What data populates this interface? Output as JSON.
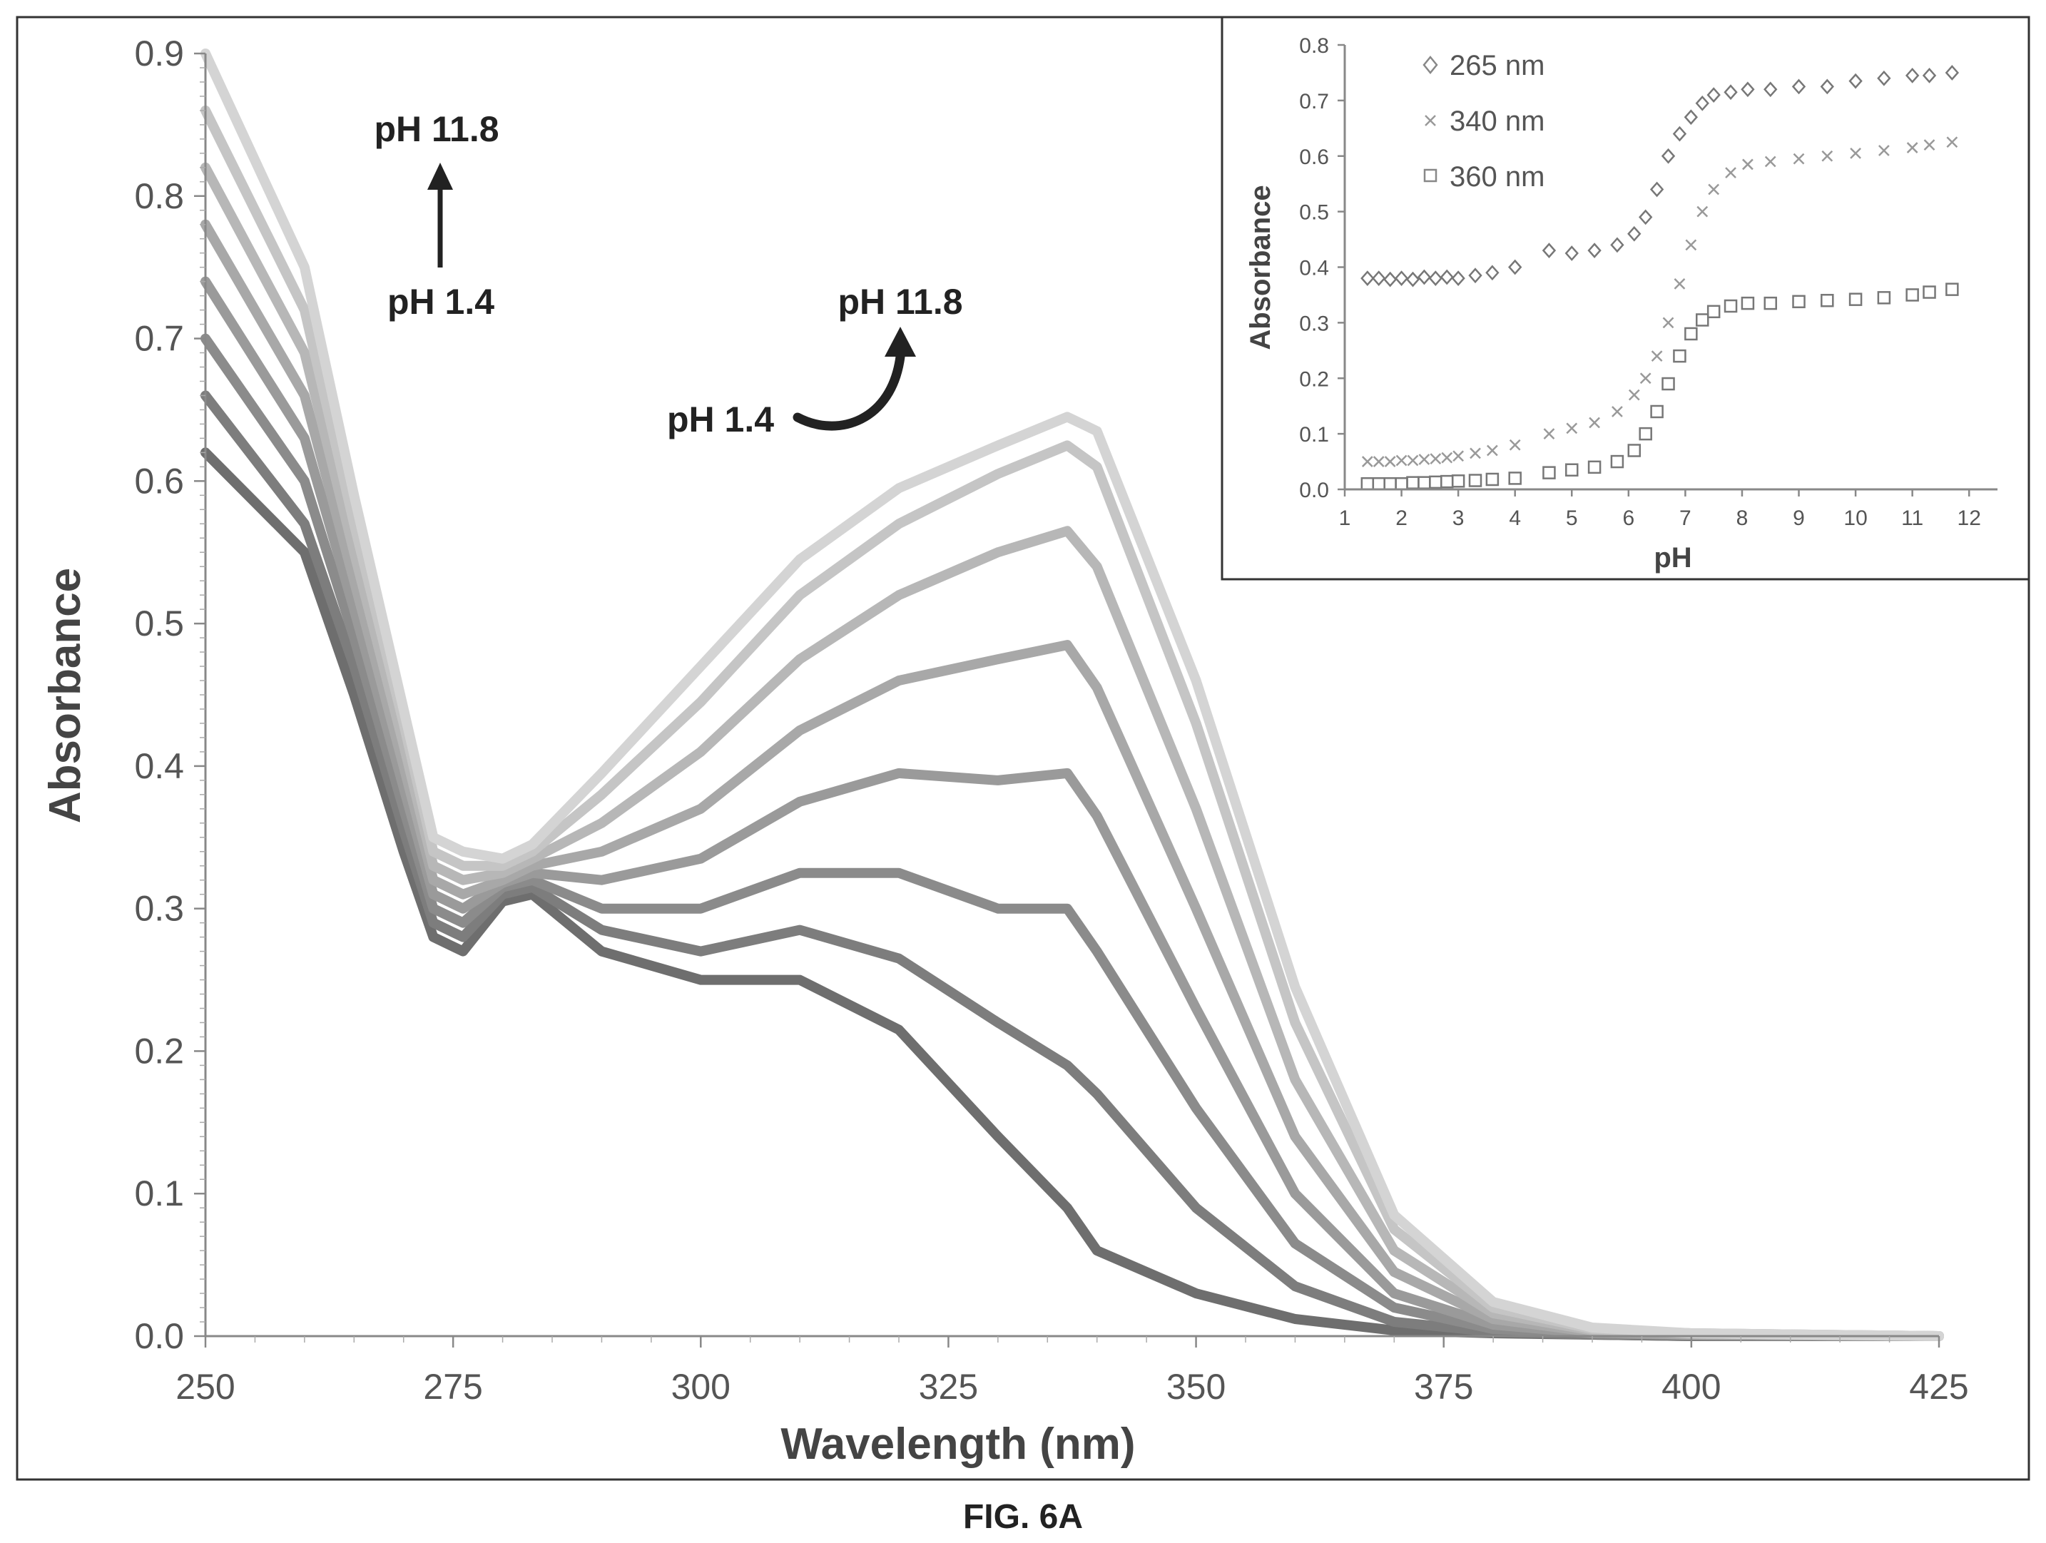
{
  "caption": "FIG. 6A",
  "colors": {
    "curve_dark": "#6e6e6e",
    "curve_light": "#d4d4d4",
    "marker": "#777777",
    "frame": "#333333"
  },
  "chart_data": [
    {
      "type": "line",
      "title": "",
      "xlabel": "Wavelength (nm)",
      "ylabel": "Absorbance",
      "xlim": [
        250,
        425
      ],
      "ylim": [
        0,
        0.9
      ],
      "x_ticks": [
        "250",
        "275",
        "300",
        "325",
        "350",
        "375",
        "400",
        "425"
      ],
      "y_ticks": [
        "0.0",
        "0.1",
        "0.2",
        "0.3",
        "0.4",
        "0.5",
        "0.6",
        "0.7",
        "0.8",
        "0.9"
      ],
      "grid": false,
      "annotations": [
        {
          "text": "pH 11.8",
          "near": "short-wavelength band, top"
        },
        {
          "text": "pH 1.4",
          "near": "short-wavelength band, bottom"
        },
        {
          "text": "pH 11.8",
          "near": "long-wavelength band, arrow head"
        },
        {
          "text": "pH 1.4",
          "near": "long-wavelength band, arrow tail"
        }
      ],
      "series": [
        {
          "x": [
            250,
            260,
            265,
            270,
            273,
            276,
            280,
            283,
            290,
            300,
            310,
            320,
            330,
            337,
            340,
            350,
            360,
            370,
            380,
            390,
            400,
            425
          ],
          "y": [
            0.62,
            0.55,
            0.45,
            0.34,
            0.28,
            0.27,
            0.305,
            0.31,
            0.27,
            0.25,
            0.25,
            0.215,
            0.14,
            0.09,
            0.06,
            0.03,
            0.012,
            0.004,
            0.002,
            0.001,
            0.0,
            0.0
          ]
        },
        {
          "x": [
            250,
            260,
            265,
            270,
            273,
            276,
            280,
            283,
            290,
            300,
            310,
            320,
            330,
            337,
            340,
            350,
            360,
            370,
            380,
            390,
            400,
            425
          ],
          "y": [
            0.66,
            0.57,
            0.47,
            0.355,
            0.29,
            0.28,
            0.31,
            0.315,
            0.285,
            0.27,
            0.285,
            0.265,
            0.22,
            0.19,
            0.17,
            0.09,
            0.035,
            0.01,
            0.003,
            0.001,
            0.0,
            0.0
          ]
        },
        {
          "x": [
            250,
            260,
            265,
            270,
            273,
            276,
            280,
            283,
            290,
            300,
            310,
            320,
            330,
            337,
            340,
            350,
            360,
            370,
            380,
            390,
            400,
            425
          ],
          "y": [
            0.7,
            0.6,
            0.49,
            0.37,
            0.3,
            0.29,
            0.315,
            0.32,
            0.3,
            0.3,
            0.325,
            0.325,
            0.3,
            0.3,
            0.27,
            0.16,
            0.065,
            0.02,
            0.005,
            0.002,
            0.001,
            0.0
          ]
        },
        {
          "x": [
            250,
            260,
            265,
            270,
            273,
            276,
            280,
            283,
            290,
            300,
            310,
            320,
            330,
            337,
            340,
            350,
            360,
            370,
            380,
            390,
            400,
            425
          ],
          "y": [
            0.74,
            0.63,
            0.51,
            0.385,
            0.31,
            0.3,
            0.318,
            0.325,
            0.32,
            0.335,
            0.375,
            0.395,
            0.39,
            0.395,
            0.365,
            0.23,
            0.1,
            0.03,
            0.008,
            0.002,
            0.001,
            0.0
          ]
        },
        {
          "x": [
            250,
            260,
            265,
            270,
            273,
            276,
            280,
            283,
            290,
            300,
            310,
            320,
            330,
            337,
            340,
            350,
            360,
            370,
            380,
            390,
            400,
            425
          ],
          "y": [
            0.78,
            0.66,
            0.53,
            0.4,
            0.32,
            0.31,
            0.32,
            0.33,
            0.34,
            0.37,
            0.425,
            0.46,
            0.475,
            0.485,
            0.455,
            0.3,
            0.14,
            0.045,
            0.012,
            0.003,
            0.001,
            0.0
          ]
        },
        {
          "x": [
            250,
            260,
            265,
            270,
            273,
            276,
            280,
            283,
            290,
            300,
            310,
            320,
            330,
            337,
            340,
            350,
            360,
            370,
            380,
            390,
            400,
            425
          ],
          "y": [
            0.82,
            0.69,
            0.55,
            0.415,
            0.33,
            0.32,
            0.325,
            0.335,
            0.36,
            0.41,
            0.475,
            0.52,
            0.55,
            0.565,
            0.54,
            0.37,
            0.18,
            0.06,
            0.016,
            0.004,
            0.002,
            0.0
          ]
        },
        {
          "x": [
            250,
            260,
            265,
            270,
            273,
            276,
            280,
            283,
            290,
            300,
            310,
            320,
            330,
            337,
            340,
            350,
            360,
            370,
            380,
            390,
            400,
            425
          ],
          "y": [
            0.86,
            0.72,
            0.57,
            0.43,
            0.34,
            0.33,
            0.33,
            0.34,
            0.38,
            0.445,
            0.52,
            0.57,
            0.605,
            0.625,
            0.61,
            0.43,
            0.22,
            0.075,
            0.02,
            0.005,
            0.002,
            0.0
          ]
        },
        {
          "x": [
            250,
            260,
            265,
            270,
            273,
            276,
            280,
            283,
            290,
            300,
            310,
            320,
            330,
            337,
            340,
            350,
            360,
            370,
            380,
            390,
            400,
            425
          ],
          "y": [
            0.9,
            0.75,
            0.59,
            0.44,
            0.35,
            0.34,
            0.335,
            0.345,
            0.395,
            0.47,
            0.545,
            0.595,
            0.625,
            0.645,
            0.635,
            0.46,
            0.245,
            0.085,
            0.024,
            0.006,
            0.002,
            0.0
          ]
        }
      ]
    },
    {
      "type": "scatter",
      "title": "",
      "xlabel": "pH",
      "ylabel": "Absorbance",
      "xlim": [
        1,
        12.5
      ],
      "ylim": [
        0,
        0.8
      ],
      "x_ticks": [
        "1",
        "2",
        "3",
        "4",
        "5",
        "6",
        "7",
        "8",
        "9",
        "10",
        "11",
        "12"
      ],
      "y_ticks": [
        "0.0",
        "0.1",
        "0.2",
        "0.3",
        "0.4",
        "0.5",
        "0.6",
        "0.7",
        "0.8"
      ],
      "grid": false,
      "legend": "top-left",
      "series": [
        {
          "name": "265 nm",
          "marker": "diamond",
          "x": [
            1.4,
            1.6,
            1.8,
            2.0,
            2.2,
            2.4,
            2.6,
            2.8,
            3.0,
            3.3,
            3.6,
            4.0,
            4.6,
            5.0,
            5.4,
            5.8,
            6.1,
            6.3,
            6.5,
            6.7,
            6.9,
            7.1,
            7.3,
            7.5,
            7.8,
            8.1,
            8.5,
            9.0,
            9.5,
            10.0,
            10.5,
            11.0,
            11.3,
            11.7
          ],
          "y": [
            0.38,
            0.38,
            0.378,
            0.38,
            0.378,
            0.382,
            0.38,
            0.382,
            0.38,
            0.385,
            0.39,
            0.4,
            0.43,
            0.425,
            0.43,
            0.44,
            0.46,
            0.49,
            0.54,
            0.6,
            0.64,
            0.67,
            0.695,
            0.71,
            0.715,
            0.72,
            0.72,
            0.725,
            0.725,
            0.735,
            0.74,
            0.745,
            0.745,
            0.75
          ]
        },
        {
          "name": "340 nm",
          "marker": "cross",
          "x": [
            1.4,
            1.6,
            1.8,
            2.0,
            2.2,
            2.4,
            2.6,
            2.8,
            3.0,
            3.3,
            3.6,
            4.0,
            4.6,
            5.0,
            5.4,
            5.8,
            6.1,
            6.3,
            6.5,
            6.7,
            6.9,
            7.1,
            7.3,
            7.5,
            7.8,
            8.1,
            8.5,
            9.0,
            9.5,
            10.0,
            10.5,
            11.0,
            11.3,
            11.7
          ],
          "y": [
            0.05,
            0.05,
            0.05,
            0.052,
            0.052,
            0.054,
            0.055,
            0.057,
            0.06,
            0.065,
            0.07,
            0.08,
            0.1,
            0.11,
            0.12,
            0.14,
            0.17,
            0.2,
            0.24,
            0.3,
            0.37,
            0.44,
            0.5,
            0.54,
            0.57,
            0.585,
            0.59,
            0.595,
            0.6,
            0.605,
            0.61,
            0.615,
            0.62,
            0.625
          ]
        },
        {
          "name": "360 nm",
          "marker": "square",
          "x": [
            1.4,
            1.6,
            1.8,
            2.0,
            2.2,
            2.4,
            2.6,
            2.8,
            3.0,
            3.3,
            3.6,
            4.0,
            4.6,
            5.0,
            5.4,
            5.8,
            6.1,
            6.3,
            6.5,
            6.7,
            6.9,
            7.1,
            7.3,
            7.5,
            7.8,
            8.1,
            8.5,
            9.0,
            9.5,
            10.0,
            10.5,
            11.0,
            11.3,
            11.7
          ],
          "y": [
            0.01,
            0.01,
            0.01,
            0.01,
            0.012,
            0.012,
            0.013,
            0.014,
            0.015,
            0.016,
            0.018,
            0.02,
            0.03,
            0.035,
            0.04,
            0.05,
            0.07,
            0.1,
            0.14,
            0.19,
            0.24,
            0.28,
            0.305,
            0.32,
            0.33,
            0.335,
            0.335,
            0.338,
            0.34,
            0.342,
            0.345,
            0.35,
            0.355,
            0.36
          ]
        }
      ]
    }
  ]
}
